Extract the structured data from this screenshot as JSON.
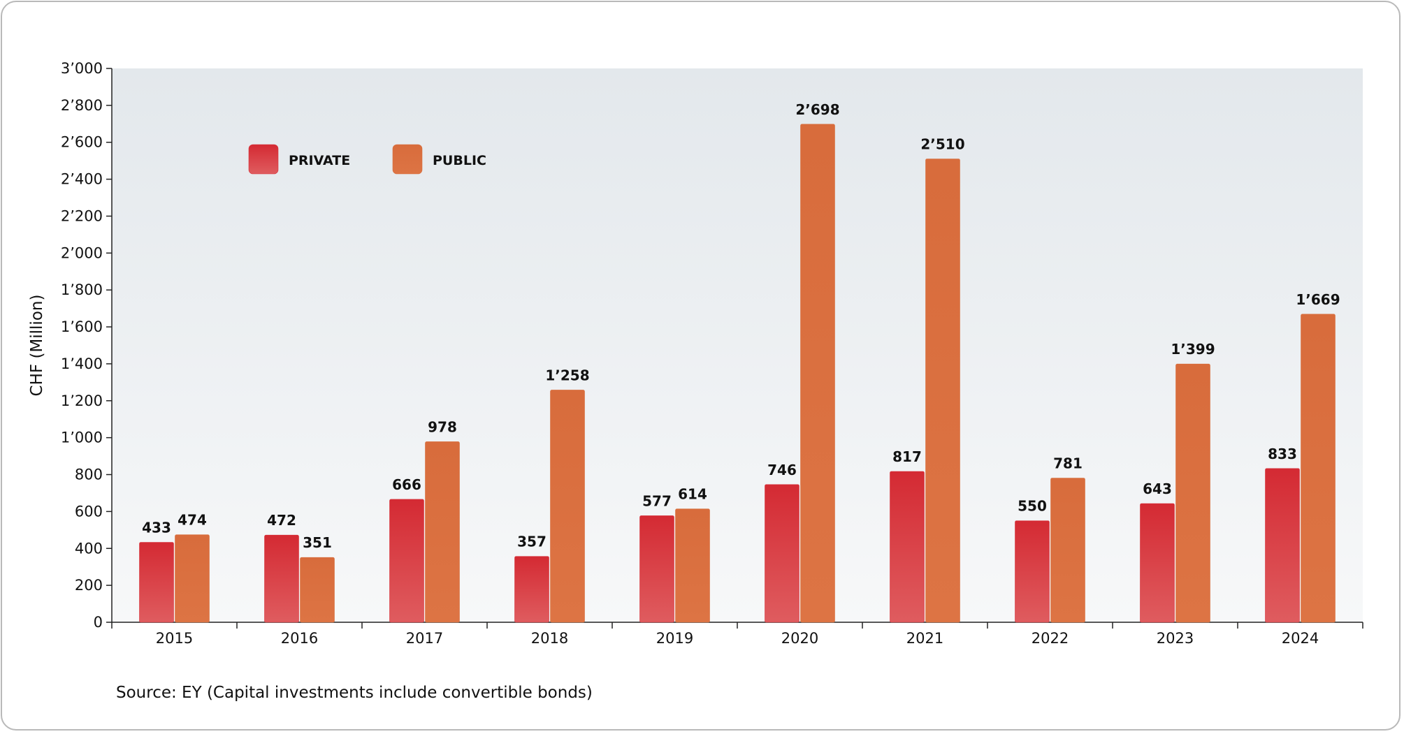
{
  "chart_data": {
    "type": "bar",
    "ylabel": "CHF (Million)",
    "xlabel": "",
    "ylim": [
      0,
      3000
    ],
    "yticks": [
      0,
      200,
      400,
      600,
      800,
      1000,
      1200,
      1400,
      1600,
      1800,
      2000,
      2200,
      2400,
      2600,
      2800,
      3000
    ],
    "ytick_labels": [
      "0",
      "200",
      "400",
      "600",
      "800",
      "1’000",
      "1’200",
      "1’400",
      "1’600",
      "1’800",
      "2’000",
      "2’200",
      "2’400",
      "2’600",
      "2’800",
      "3’000"
    ],
    "categories": [
      "2015",
      "2016",
      "2017",
      "2018",
      "2019",
      "2020",
      "2021",
      "2022",
      "2023",
      "2024"
    ],
    "series": [
      {
        "name": "PRIVATE",
        "values": [
          433,
          472,
          666,
          357,
          577,
          746,
          817,
          550,
          643,
          833
        ],
        "labels": [
          "433",
          "472",
          "666",
          "357",
          "577",
          "746",
          "817",
          "550",
          "643",
          "833"
        ],
        "color": "#d8323a"
      },
      {
        "name": "PUBLIC",
        "values": [
          474,
          351,
          978,
          1258,
          614,
          2698,
          2510,
          781,
          1399,
          1669
        ],
        "labels": [
          "474",
          "351",
          "978",
          "1’258",
          "614",
          "2’698",
          "2’510",
          "781",
          "1’399",
          "1’669"
        ],
        "color": "#d8703f"
      }
    ],
    "legend_position": "top-left",
    "background_gradient": [
      "#e3e8ec",
      "#f7f8f9"
    ],
    "grid": false
  },
  "source_note": "Source: EY (Capital investments include convertible bonds)"
}
